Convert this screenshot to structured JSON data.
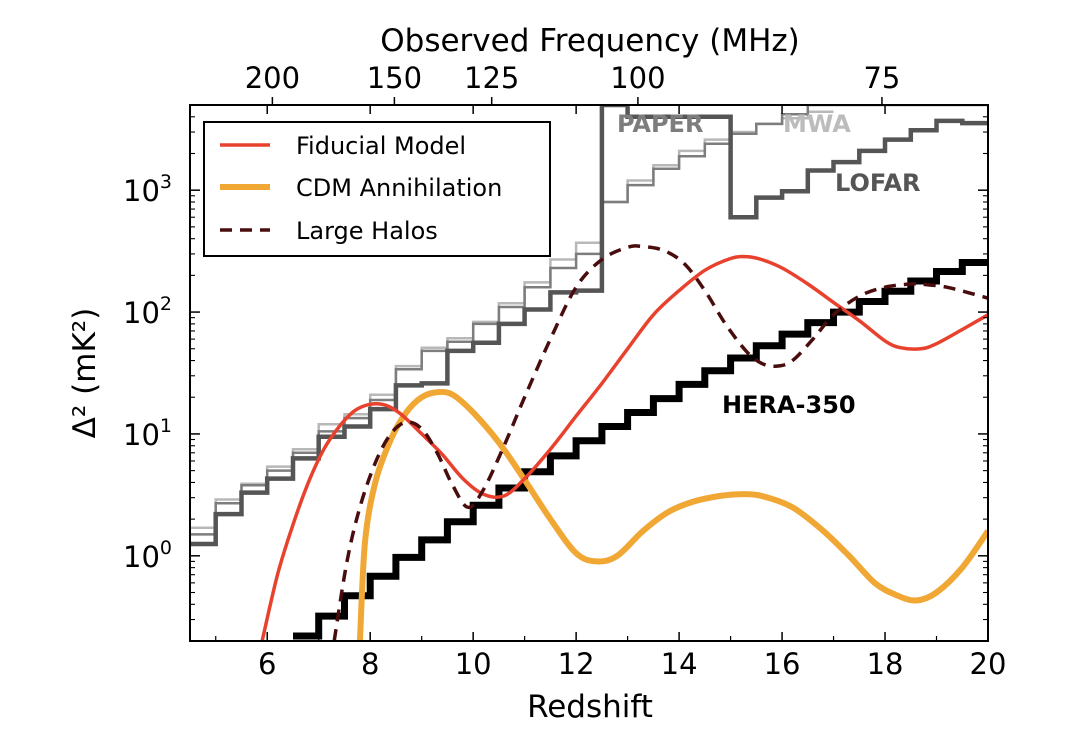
{
  "chart_data": {
    "type": "line",
    "xlabel": "Redshift",
    "ylabel": "Δ² (mK²)",
    "top_xlabel": "Observed Frequency (MHz)",
    "xlim": [
      4.5,
      20
    ],
    "ylim": [
      0.2,
      5000
    ],
    "yscale": "log",
    "x_ticks": [
      6,
      8,
      10,
      12,
      14,
      16,
      18,
      20
    ],
    "y_ticks": [
      {
        "value": 1,
        "base": "10",
        "exp": "0"
      },
      {
        "value": 10,
        "base": "10",
        "exp": "1"
      },
      {
        "value": 100,
        "base": "10",
        "exp": "2"
      },
      {
        "value": 1000,
        "base": "10",
        "exp": "3"
      }
    ],
    "top_ticks": [
      {
        "label": "200",
        "z": 6.1
      },
      {
        "label": "150",
        "z": 8.47
      },
      {
        "label": "125",
        "z": 10.36
      },
      {
        "label": "100",
        "z": 13.2
      },
      {
        "label": "75",
        "z": 17.94
      }
    ],
    "legend": {
      "placement": "top-left",
      "entries": [
        "Fiducial Model",
        "CDM Annihilation",
        "Large Halos"
      ]
    },
    "series": [
      {
        "name": "Fiducial Model",
        "color": "#e8412e",
        "style": "solid",
        "width": 3.5,
        "x": [
          5.9,
          6.2,
          6.5,
          6.8,
          7.1,
          7.4,
          7.7,
          8.0,
          8.3,
          8.6,
          9.0,
          9.4,
          9.8,
          10.2,
          10.6,
          11.0,
          11.5,
          12.0,
          12.5,
          13.0,
          13.5,
          14.0,
          14.5,
          15.0,
          15.3,
          15.6,
          16.0,
          16.5,
          17.0,
          17.5,
          18.0,
          18.3,
          18.7,
          19.0,
          19.5,
          20.0
        ],
        "y": [
          0.2,
          0.7,
          1.8,
          4.0,
          7.5,
          11.5,
          15.5,
          17.5,
          17.2,
          14.5,
          10.0,
          6.8,
          4.3,
          3.2,
          3.1,
          4.3,
          7.5,
          14.0,
          26.0,
          50.0,
          95.0,
          150.0,
          220.0,
          275.0,
          285.0,
          270.0,
          230.0,
          170.0,
          120.0,
          85.0,
          58.0,
          51.0,
          50.0,
          55.0,
          72.0,
          95.0
        ]
      },
      {
        "name": "CDM Annihilation",
        "color": "#f0a733",
        "style": "solid",
        "width": 6,
        "x": [
          7.8,
          7.9,
          8.1,
          8.4,
          8.7,
          9.0,
          9.3,
          9.6,
          10.0,
          10.5,
          11.0,
          11.5,
          12.0,
          12.4,
          12.8,
          13.3,
          13.8,
          14.3,
          14.8,
          15.2,
          15.6,
          16.2,
          16.8,
          17.3,
          17.8,
          18.2,
          18.6,
          19.0,
          19.5,
          20.0
        ],
        "y": [
          0.2,
          1.3,
          4.0,
          9.0,
          15.0,
          20.0,
          22.0,
          21.0,
          15.0,
          8.5,
          4.2,
          2.0,
          1.05,
          0.9,
          1.0,
          1.6,
          2.3,
          2.8,
          3.1,
          3.2,
          3.1,
          2.5,
          1.6,
          1.0,
          0.6,
          0.48,
          0.43,
          0.5,
          0.8,
          1.6
        ]
      },
      {
        "name": "Large Halos",
        "color": "#4a0d0d",
        "style": "dashed",
        "width": 3.5,
        "x": [
          7.3,
          7.55,
          7.8,
          8.1,
          8.4,
          8.7,
          9.0,
          9.3,
          9.6,
          9.9,
          10.2,
          10.6,
          11.0,
          11.5,
          12.0,
          12.5,
          13.0,
          13.3,
          13.7,
          14.1,
          14.5,
          14.9,
          15.3,
          15.6,
          15.9,
          16.2,
          16.6,
          17.0,
          17.5,
          18.0,
          18.5,
          18.8,
          19.2,
          19.6,
          20.0
        ],
        "y": [
          0.2,
          0.9,
          2.5,
          5.8,
          10.0,
          12.5,
          11.0,
          7.0,
          3.8,
          2.5,
          3.5,
          8.0,
          20.0,
          60.0,
          160.0,
          270.0,
          340.0,
          345.0,
          320.0,
          250.0,
          150.0,
          80.0,
          48.0,
          38.0,
          36.0,
          40.0,
          60.0,
          95.0,
          135.0,
          160.0,
          170.0,
          168.0,
          160.0,
          145.0,
          130.0
        ]
      }
    ],
    "sensitivity_curves": [
      {
        "name": "HERA-350",
        "color": "#000000",
        "width": 7,
        "edges": [
          6.5,
          7.0,
          7.5,
          8.0,
          8.5,
          9.0,
          9.5,
          10.0,
          10.5,
          11.0,
          11.5,
          12.0,
          12.5,
          13.0,
          13.5,
          14.0,
          14.5,
          15.0,
          15.5,
          16.0,
          16.5,
          17.0,
          17.5,
          18.0,
          18.5,
          19.0,
          19.5,
          20.0
        ],
        "values": [
          0.22,
          0.32,
          0.47,
          0.68,
          0.97,
          1.35,
          1.9,
          2.6,
          3.6,
          4.9,
          6.6,
          8.8,
          11.5,
          15.0,
          19.5,
          25.5,
          33.0,
          42.0,
          53.0,
          66.0,
          82.0,
          100.0,
          122.0,
          148.0,
          180.0,
          215.0,
          255.0
        ]
      },
      {
        "name": "LOFAR",
        "color": "#555555",
        "width": 4.5,
        "edges": [
          4.5,
          5.0,
          5.5,
          6.0,
          6.5,
          7.0,
          7.5,
          8.0,
          8.5,
          9.0,
          9.5,
          10.0,
          10.5,
          11.0,
          11.5,
          12.0,
          12.5,
          13.0,
          15.0,
          15.5,
          16.0,
          16.5,
          17.0,
          17.5,
          18.0,
          18.5,
          19.0,
          19.5,
          20.0
        ],
        "values": [
          1.25,
          2.2,
          3.3,
          4.3,
          6.3,
          9.5,
          11.5,
          16.0,
          25.0,
          26.0,
          48.0,
          56.0,
          80.0,
          105.0,
          145.0,
          150.0,
          5000.0,
          4000.0,
          600.0,
          870.0,
          980.0,
          1450.0,
          1700.0,
          2100.0,
          2600.0,
          3100.0,
          3700.0,
          3550.0
        ]
      },
      {
        "name": "PAPER",
        "color": "#7d7d7d",
        "width": 2.5,
        "edges": [
          4.5,
          5.0,
          5.5,
          6.0,
          6.5,
          7.0,
          7.5,
          8.0,
          8.5,
          9.0,
          9.5,
          10.0,
          10.5,
          11.0,
          11.5,
          12.0,
          12.5,
          13.0,
          13.5,
          14.0,
          14.5,
          15.0,
          15.5,
          16.0,
          16.5,
          17.0,
          17.5,
          18.0,
          18.5,
          19.0,
          19.5,
          20.0
        ],
        "values": [
          1.5,
          2.7,
          3.8,
          5.0,
          7.0,
          10.5,
          13.5,
          19.0,
          34.0,
          48.0,
          57.0,
          80.0,
          110.0,
          160.0,
          230.0,
          300.0,
          800.0,
          1100.0,
          1500.0,
          1900.0,
          2400.0,
          2900.0,
          3500.0,
          4200.0,
          5000.0,
          5000.0,
          5000.0,
          5000.0,
          5000.0,
          5000.0,
          5000.0
        ]
      },
      {
        "name": "MWA",
        "color": "#b8b8b8",
        "width": 2.5,
        "edges": [
          4.5,
          5.0,
          5.5,
          6.0,
          6.5,
          7.0,
          7.5,
          8.0,
          8.5,
          9.0,
          9.5,
          10.0,
          10.5,
          11.0,
          11.5,
          12.0,
          12.5,
          13.0,
          13.5,
          14.0,
          14.5,
          15.0,
          15.5,
          16.0,
          16.5,
          17.0
        ],
        "values": [
          1.7,
          2.9,
          3.9,
          5.4,
          7.5,
          12.0,
          14.5,
          21.0,
          36.0,
          51.0,
          61.0,
          83.0,
          118.0,
          175.0,
          270.0,
          370.0,
          800.0,
          1200.0,
          1600.0,
          2100.0,
          2600.0,
          3000.0,
          3500.0,
          3900.0,
          4400.0
        ]
      }
    ],
    "annotations": [
      {
        "text": "PAPER",
        "color": "#7d7d7d"
      },
      {
        "text": "MWA",
        "color": "#bcbcbc"
      },
      {
        "text": "LOFAR",
        "color": "#555555"
      },
      {
        "text": "HERA-350",
        "color": "#000000"
      }
    ]
  }
}
